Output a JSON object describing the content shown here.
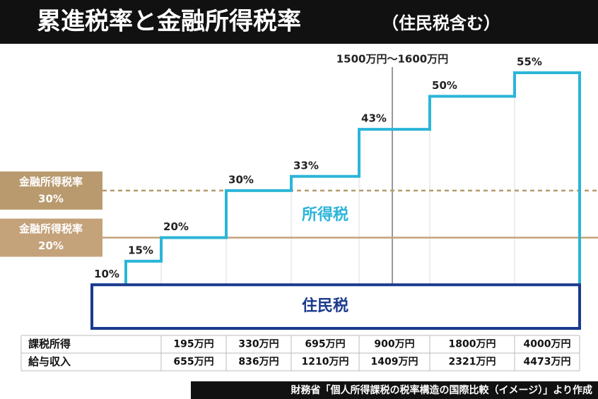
{
  "chart_data": {
    "type": "step",
    "title": "累進税率と金融所得税率",
    "subtitle": "（住民税含む）",
    "series": [
      {
        "name": "所得税",
        "color": "#2bb5d8",
        "values": [
          10,
          15,
          20,
          30,
          33,
          43,
          50,
          55
        ],
        "value_labels": [
          "10%",
          "15%",
          "20%",
          "30%",
          "33%",
          "43%",
          "50%",
          "55%"
        ]
      }
    ],
    "resident_tax": {
      "label": "住民税",
      "color": "#1b3a8e"
    },
    "reference_lines": [
      {
        "label": "金融所得税率",
        "value": 30,
        "value_label": "30%",
        "style": "dashed",
        "color": "#b89a6e"
      },
      {
        "label": "金融所得税率",
        "value": 20,
        "value_label": "20%",
        "style": "solid",
        "color": "#c4a27a"
      }
    ],
    "annotation": {
      "label": "1500万円～1600万円"
    }
  },
  "table": {
    "rows": [
      [
        "課税所得",
        "195万円",
        "330万円",
        "695万円",
        "900万円",
        "1800万円",
        "4000万円"
      ],
      [
        "給与収入",
        "655万円",
        "836万円",
        "1210万円",
        "1409万円",
        "2321万円",
        "4473万円"
      ]
    ]
  },
  "footer": "財務省「個人所得課税の税率構造の国際比較（イメージ）」より作成"
}
